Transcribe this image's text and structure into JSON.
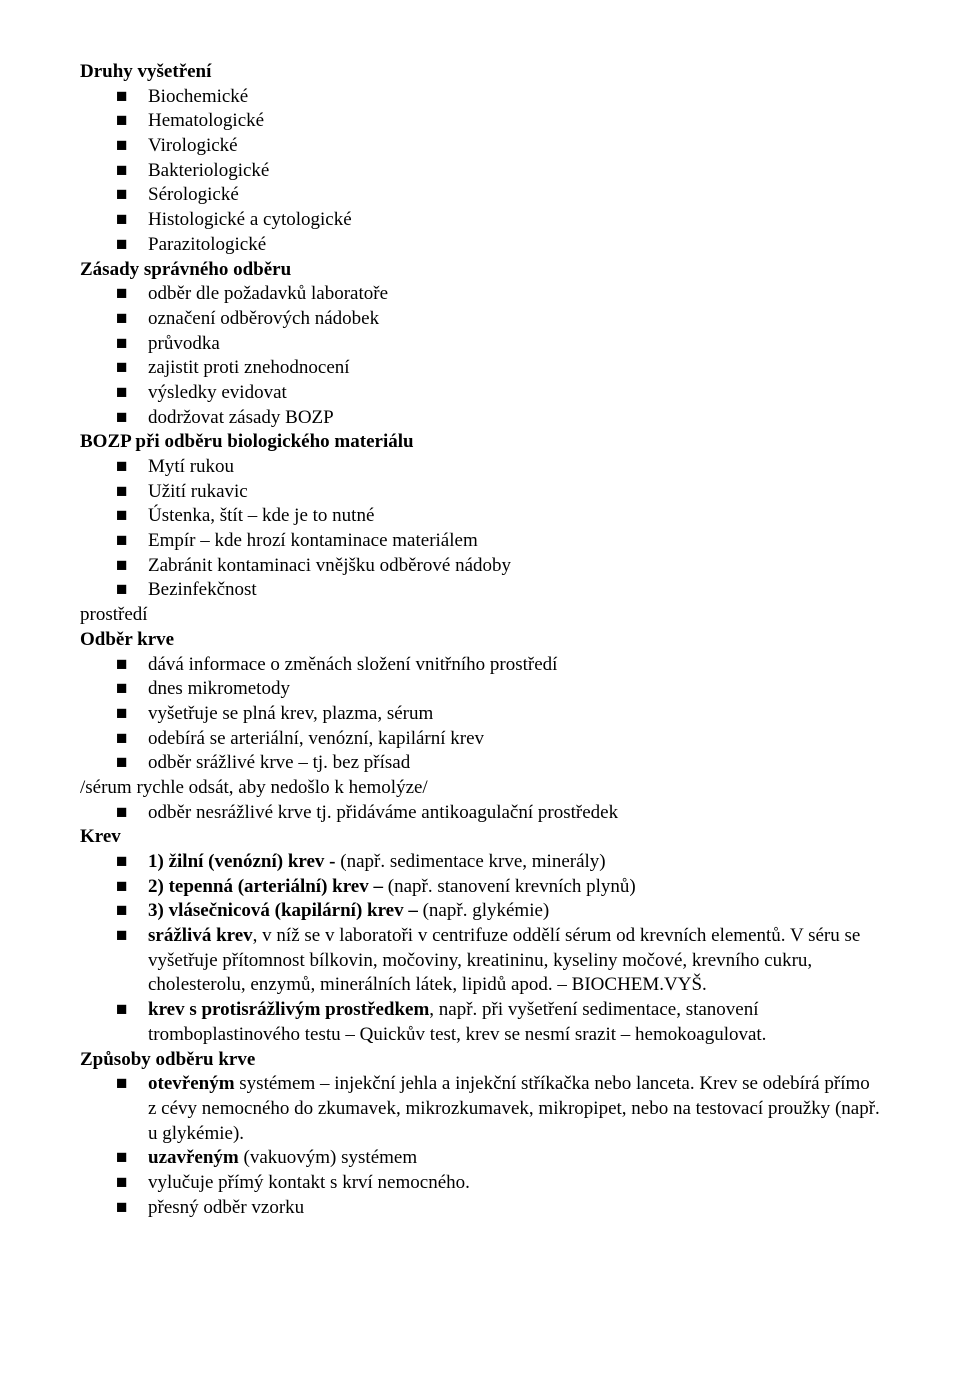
{
  "druhy_heading": "Druhy vyšetření",
  "druhy_items": [
    "Biochemické",
    "Hematologické",
    "Virologické",
    "Bakteriologické",
    "Sérologické",
    "Histologické a cytologické",
    "Parazitologické"
  ],
  "zasady_heading": "Zásady správného odběru",
  "zasady_items": [
    "odběr dle požadavků laboratoře",
    " označení odběrových nádobek",
    " průvodka",
    " zajistit proti znehodnocení",
    " výsledky evidovat",
    " dodržovat zásady BOZP"
  ],
  "bozp_heading": "BOZP při odběru biologického materiálu",
  "bozp_items": [
    "Mytí rukou",
    "Užití rukavic",
    "Ústenka, štít – kde je to nutné",
    "Empír – kde hrozí kontaminace materiálem",
    "Zabránit kontaminaci vnějšku odběrové nádoby",
    "Bezinfekčnost"
  ],
  "prostredi_label": "prostředí",
  "odber_krve_heading": "Odběr krve",
  "odber_krve_items": [
    "dává informace o změnách složení vnitřního prostředí",
    "dnes mikrometody",
    "vyšetřuje se plná krev, plazma, sérum",
    "odebírá se arteriální, venózní, kapilární krev",
    "odběr srážlivé krve – tj. bez přísad"
  ],
  "serum_line": "/sérum rychle odsát, aby nedošlo k hemolýze/",
  "odber_nesrazlive": "odběr nesrážlivé krve tj. přidáváme antikoagulační prostředek",
  "krev_heading": "Krev",
  "krev_items": [
    {
      "bold": "1) žilní (venózní) krev -",
      "rest": " (např. sedimentace krve, minerály)"
    },
    {
      "bold": "2) tepenná (arteriální) krev –",
      "rest": " (např. stanovení krevních plynů)"
    },
    {
      "bold": "3) vlásečnicová (kapilární) krev –",
      "rest": " (např. glykémie)"
    }
  ],
  "srazliva_bold": "srážlivá krev",
  "srazliva_rest": ", v níž se v laboratoři v centrifuze oddělí sérum od krevních elementů. V séru se vyšetřuje přítomnost bílkovin, močoviny, kreatininu, kyseliny močové, krevního cukru, cholesterolu, enzymů, minerálních látek, lipidů apod. – BIOCHEM.VYŠ.",
  "protisrazlivym_bold": "krev s protisrážlivým prostředkem",
  "protisrazlivym_rest": ", např. při vyšetření sedimentace, stanovení tromboplastinového testu – Quickův test, krev se nesmí srazit – hemokoagulovat.",
  "zpusoby_heading": "Způsoby odběru krve",
  "otevrenym_bold": "otevřeným",
  "otevrenym_rest": " systémem – injekční jehla a injekční stříkačka nebo lanceta. Krev se odebírá přímo z cévy nemocného do zkumavek, mikrozkumavek, mikropipet, nebo na testovací proužky (např. u glykémie).",
  "uzavrenym_bold": "uzavřeným",
  "uzavrenym_rest": " (vakuovým) systémem",
  "zpusoby_extra": [
    "vylučuje přímý kontakt s krví nemocného.",
    "přesný odběr vzorku"
  ]
}
